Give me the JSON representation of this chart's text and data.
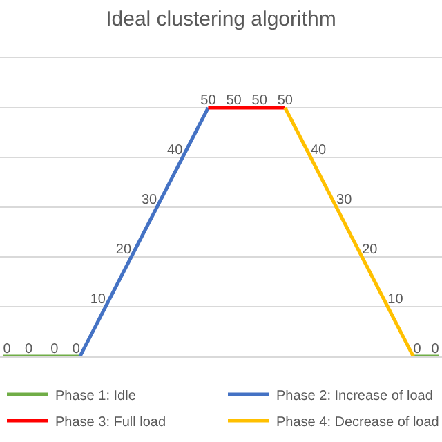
{
  "chart_data": {
    "type": "line",
    "title": "Ideal clustering algorithm",
    "categories": [
      null,
      null,
      null,
      null,
      null,
      null,
      null,
      null,
      null,
      null,
      null,
      null,
      null,
      null,
      null,
      null,
      null,
      null
    ],
    "series": [
      {
        "name": "Phase 1: Idle",
        "color": "#70ad47",
        "values": [
          0,
          0,
          0,
          0,
          null,
          null,
          null,
          null,
          null,
          null,
          null,
          null,
          null,
          null,
          null,
          null,
          0,
          0
        ],
        "value_labels": [
          "0",
          "0",
          "0",
          "0",
          null,
          null,
          null,
          null,
          null,
          null,
          null,
          null,
          null,
          null,
          null,
          null,
          "0",
          "0"
        ]
      },
      {
        "name": "Phase 2: Increase of load",
        "color": "#4472c4",
        "values": [
          null,
          null,
          null,
          0,
          10,
          20,
          30,
          40,
          50,
          null,
          null,
          null,
          null,
          null,
          null,
          null,
          null,
          null
        ],
        "value_labels": [
          null,
          null,
          null,
          null,
          "10",
          "20",
          "30",
          "40",
          null,
          null,
          null,
          null,
          null,
          null,
          null,
          null,
          null,
          null
        ]
      },
      {
        "name": "Phase 3: Full load",
        "color": "#ff0000",
        "values": [
          null,
          null,
          null,
          null,
          null,
          null,
          null,
          null,
          50,
          50,
          50,
          50,
          null,
          null,
          null,
          null,
          null,
          null
        ],
        "value_labels": [
          null,
          null,
          null,
          null,
          null,
          null,
          null,
          null,
          "50",
          "50",
          "50",
          "50",
          null,
          null,
          null,
          null,
          null,
          null
        ]
      },
      {
        "name": "Phase 4: Decrease of load",
        "color": "#ffc000",
        "values": [
          null,
          null,
          null,
          null,
          null,
          null,
          null,
          null,
          null,
          null,
          null,
          50,
          40,
          30,
          20,
          10,
          0,
          null
        ],
        "value_labels": [
          null,
          null,
          null,
          null,
          null,
          null,
          null,
          null,
          null,
          null,
          null,
          null,
          "40",
          "30",
          "20",
          "10",
          null,
          null
        ]
      }
    ],
    "ylim": [
      0,
      60
    ],
    "yticks": [
      {
        "value": 0,
        "label": null
      },
      {
        "value": 10,
        "label": null
      },
      {
        "value": 20,
        "label": null
      },
      {
        "value": 30,
        "label": null
      },
      {
        "value": 40,
        "label": null
      },
      {
        "value": 50,
        "label": null
      }
    ],
    "grid": "y",
    "legend": "bottom",
    "marker": "none",
    "line_style": "solid"
  }
}
